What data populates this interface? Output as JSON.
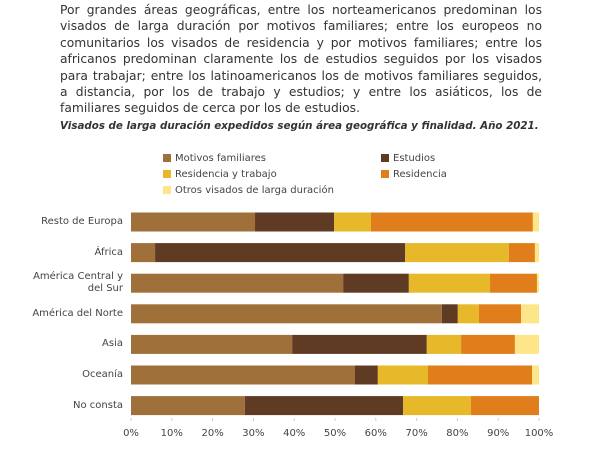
{
  "document": {
    "paragraph": "Por grandes áreas geográficas, entre los norteamericanos predominan los visados de larga duración por motivos familiares; entre los europeos no comunitarios los visados de residencia y por motivos familiares; entre los africanos predominan claramente los de estudios seguidos por los visados para trabajar; entre los latinoamericanos los de motivos familiares seguidos, a distancia, por los de trabajo y estudios; y entre los asiáticos, los de familiares seguidos de cerca por los de estudios."
  },
  "chart_data": {
    "type": "stacked-bar-horizontal",
    "title": "Visados de larga duración expedidos según área geográfica y finalidad. Año 2021.",
    "categories": [
      "Resto de Europa",
      "África",
      "América Central y del Sur",
      "América del Norte",
      "Asia",
      "Oceanía",
      "No consta"
    ],
    "series": [
      {
        "name": "Motivos familiares",
        "color": "#a0703a",
        "values": [
          30.4,
          5.9,
          52.0,
          76.2,
          39.5,
          54.9,
          27.9
        ]
      },
      {
        "name": "Estudios",
        "color": "#5e3b22",
        "values": [
          19.4,
          61.3,
          16.1,
          3.9,
          33.0,
          5.6,
          38.8
        ]
      },
      {
        "name": "Residencia y trabajo",
        "color": "#e6b82a",
        "values": [
          9.0,
          25.4,
          19.9,
          5.2,
          8.4,
          12.3,
          16.6
        ]
      },
      {
        "name": "Residencia",
        "color": "#e07e1c",
        "values": [
          39.7,
          6.4,
          11.5,
          10.3,
          13.2,
          25.5,
          16.7
        ]
      },
      {
        "name": "Otros visados de larga duración",
        "color": "#fde68a",
        "values": [
          1.5,
          1.0,
          0.5,
          4.4,
          5.9,
          1.7,
          0
        ]
      }
    ],
    "xlim": [
      0,
      100
    ],
    "xticks": [
      {
        "value": 0,
        "label": "0%"
      },
      {
        "value": 10,
        "label": "10%"
      },
      {
        "value": 20,
        "label": "20%"
      },
      {
        "value": 30,
        "label": "30%"
      },
      {
        "value": 40,
        "label": "40%"
      },
      {
        "value": 50,
        "label": "50%"
      },
      {
        "value": 60,
        "label": "60%"
      },
      {
        "value": 70,
        "label": "70%"
      },
      {
        "value": 80,
        "label": "80%"
      },
      {
        "value": 90,
        "label": "90%"
      },
      {
        "value": 100,
        "label": "100%"
      }
    ]
  }
}
